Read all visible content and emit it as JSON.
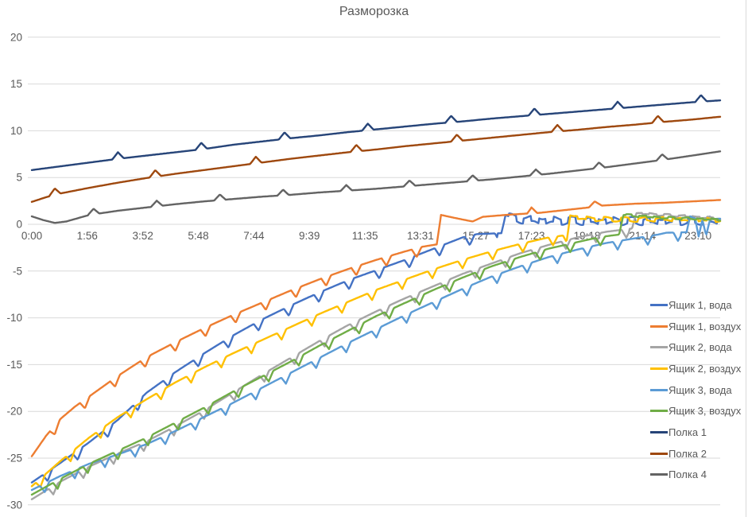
{
  "title": "Разморозка",
  "chart_data": {
    "type": "line",
    "title": "Разморозка",
    "x_axis": {
      "tick_labels": [
        "0:00",
        "1:56",
        "3:52",
        "5:48",
        "7:44",
        "9:39",
        "11:35",
        "13:31",
        "15:27",
        "17:23",
        "19:18",
        "21:14",
        "23:10"
      ],
      "tick_interval_minutes": 116,
      "range_hours": [
        0,
        24.1
      ]
    },
    "y_axis": {
      "ticks": [
        20,
        15,
        10,
        5,
        0,
        -5,
        -10,
        -15,
        -20,
        -25,
        -30
      ],
      "min": -30,
      "max": 20,
      "gridlines": true
    },
    "legend_position": "right",
    "style": {
      "background": "#FFFFFF",
      "gridline_color": "#D9D9D9",
      "border_color": "#D9D9D9",
      "axis_text_color": "#595959",
      "title_color": "#595959"
    },
    "series": [
      {
        "name": "Ящик 1, вода",
        "color": "#4472C4",
        "anchors": [
          [
            0,
            -27.6
          ],
          [
            1,
            -25.5
          ],
          [
            2,
            -23.3
          ],
          [
            3,
            -20.9
          ],
          [
            4,
            -18.0
          ],
          [
            5,
            -15.8
          ],
          [
            6,
            -13.8
          ],
          [
            7,
            -11.9
          ],
          [
            8,
            -10.2
          ],
          [
            9,
            -8.7
          ],
          [
            10,
            -7.3
          ],
          [
            11,
            -6.0
          ],
          [
            12,
            -4.9
          ],
          [
            13,
            -3.8
          ],
          [
            14,
            -2.6
          ],
          [
            15,
            -1.4
          ],
          [
            15.5,
            -1.05
          ],
          [
            16.35,
            -0.95
          ],
          [
            16.5,
            1.0
          ],
          [
            16.8,
            0.55
          ],
          [
            18,
            0.4
          ],
          [
            20,
            0.35
          ],
          [
            22,
            0.35
          ],
          [
            23.97,
            0.4
          ]
        ],
        "spikes": {
          "dir": -1,
          "period": 1.05,
          "start": 0.55,
          "amp": 1.0,
          "width": 0.17,
          "until": 16.2
        },
        "noise": {
          "from": 16.6,
          "amp": 0.55,
          "period": 0.52,
          "phase": 0
        }
      },
      {
        "name": "Ящик 1, воздух",
        "color": "#ED7D31",
        "anchors": [
          [
            0,
            -24.8
          ],
          [
            0.5,
            -22.6
          ],
          [
            1,
            -20.8
          ],
          [
            1.5,
            -19.5
          ],
          [
            2,
            -18.4
          ],
          [
            3,
            -16.2
          ],
          [
            4,
            -14.2
          ],
          [
            5,
            -12.6
          ],
          [
            6,
            -11.1
          ],
          [
            7,
            -9.7
          ],
          [
            8,
            -8.4
          ],
          [
            9,
            -7.1
          ],
          [
            10,
            -5.9
          ],
          [
            11,
            -4.8
          ],
          [
            12,
            -3.8
          ],
          [
            13,
            -2.9
          ],
          [
            13.6,
            -2.4
          ],
          [
            14.1,
            -2.15
          ],
          [
            14.25,
            1.0
          ],
          [
            14.7,
            0.7
          ],
          [
            15.1,
            0.45
          ],
          [
            15.35,
            0.3
          ],
          [
            15.7,
            0.8
          ],
          [
            16.5,
            1.0
          ],
          [
            17.25,
            1.15
          ],
          [
            17.4,
            1.8
          ],
          [
            17.6,
            1.2
          ],
          [
            18.5,
            1.5
          ],
          [
            19.4,
            1.8
          ],
          [
            19.6,
            2.45
          ],
          [
            19.85,
            2.0
          ],
          [
            21,
            2.2
          ],
          [
            22,
            2.3
          ],
          [
            23,
            2.45
          ],
          [
            23.97,
            2.6
          ]
        ],
        "spikes": {
          "dir": -1,
          "period": 1.05,
          "start": 0.8,
          "amp": 0.95,
          "width": 0.17,
          "until": 13.9
        }
      },
      {
        "name": "Ящик 2, вода",
        "color": "#A5A5A5",
        "anchors": [
          [
            0,
            -29.4
          ],
          [
            1,
            -27.5
          ],
          [
            2,
            -25.9
          ],
          [
            3,
            -24.5
          ],
          [
            4,
            -23.2
          ],
          [
            5,
            -21.6
          ],
          [
            6,
            -19.9
          ],
          [
            7,
            -18.0
          ],
          [
            8,
            -16.1
          ],
          [
            9,
            -14.3
          ],
          [
            10,
            -12.5
          ],
          [
            11,
            -10.8
          ],
          [
            12,
            -9.3
          ],
          [
            13,
            -7.9
          ],
          [
            14,
            -6.6
          ],
          [
            15,
            -5.3
          ],
          [
            16,
            -4.2
          ],
          [
            17,
            -3.1
          ],
          [
            18,
            -2.2
          ],
          [
            19,
            -1.4
          ],
          [
            20,
            -0.8
          ],
          [
            20.9,
            -0.45
          ],
          [
            21.05,
            1.2
          ],
          [
            21.7,
            1.05
          ],
          [
            22.6,
            0.9
          ],
          [
            23.97,
            0.6
          ]
        ],
        "spikes": {
          "dir": -1,
          "period": 1.05,
          "start": 0.75,
          "amp": 0.9,
          "width": 0.16,
          "until": 20.8
        },
        "noise": {
          "from": 21.1,
          "amp": 0.15,
          "period": 0.5,
          "phase": 1.2
        }
      },
      {
        "name": "Ящик 2, воздух",
        "color": "#FFC000",
        "anchors": [
          [
            0,
            -28.0
          ],
          [
            1,
            -25.3
          ],
          [
            2,
            -22.8
          ],
          [
            3,
            -20.6
          ],
          [
            4,
            -18.7
          ],
          [
            5,
            -16.9
          ],
          [
            6,
            -15.3
          ],
          [
            7,
            -13.8
          ],
          [
            8,
            -12.4
          ],
          [
            9,
            -11.0
          ],
          [
            10,
            -9.6
          ],
          [
            11,
            -8.3
          ],
          [
            12,
            -7.0
          ],
          [
            13,
            -5.9
          ],
          [
            14,
            -4.8
          ],
          [
            15,
            -3.8
          ],
          [
            16,
            -2.9
          ],
          [
            17,
            -2.1
          ],
          [
            18,
            -1.4
          ],
          [
            18.5,
            -1.2
          ],
          [
            18.62,
            -1.9
          ],
          [
            18.75,
            0.95
          ],
          [
            19.3,
            0.6
          ],
          [
            20,
            0.55
          ],
          [
            21,
            0.5
          ],
          [
            22,
            0.55
          ],
          [
            23,
            0.5
          ],
          [
            23.97,
            0.45
          ]
        ],
        "spikes": {
          "dir": -1,
          "period": 1.05,
          "start": 0.3,
          "amp": 0.9,
          "width": 0.16,
          "until": 18.4
        },
        "noise": {
          "from": 18.9,
          "amp": 0.3,
          "period": 0.6,
          "phase": 2.1
        }
      },
      {
        "name": "Ящик 3, вода",
        "color": "#5B9BD5",
        "anchors": [
          [
            0,
            -28.4
          ],
          [
            1,
            -26.9
          ],
          [
            2,
            -25.6
          ],
          [
            3,
            -24.6
          ],
          [
            4,
            -23.5
          ],
          [
            5,
            -22.1
          ],
          [
            6,
            -20.6
          ],
          [
            7,
            -19.1
          ],
          [
            8,
            -17.5
          ],
          [
            9,
            -15.9
          ],
          [
            10,
            -14.3
          ],
          [
            11,
            -12.7
          ],
          [
            12,
            -11.2
          ],
          [
            13,
            -9.7
          ],
          [
            14,
            -8.3
          ],
          [
            15,
            -6.9
          ],
          [
            16,
            -5.6
          ],
          [
            17,
            -4.5
          ],
          [
            18,
            -3.5
          ],
          [
            19,
            -2.7
          ],
          [
            20,
            -2.0
          ],
          [
            21,
            -1.5
          ],
          [
            21.8,
            -1.1
          ],
          [
            22.1,
            -0.9
          ],
          [
            22.8,
            -0.85
          ],
          [
            22.92,
            0.85
          ],
          [
            23.1,
            0.6
          ],
          [
            23.22,
            -1.3
          ],
          [
            23.35,
            0.5
          ],
          [
            23.48,
            -1.2
          ],
          [
            23.62,
            0.55
          ],
          [
            23.97,
            0.6
          ]
        ],
        "spikes": {
          "dir": -1,
          "period": 1.05,
          "start": 0.45,
          "amp": 0.9,
          "width": 0.16,
          "until": 22.6
        }
      },
      {
        "name": "Ящик 3, воздух",
        "color": "#70AD47",
        "anchors": [
          [
            0,
            -28.9
          ],
          [
            1,
            -27.2
          ],
          [
            2,
            -25.6
          ],
          [
            3,
            -24.2
          ],
          [
            4,
            -22.8
          ],
          [
            5,
            -21.2
          ],
          [
            6,
            -19.6
          ],
          [
            7,
            -17.9
          ],
          [
            8,
            -16.3
          ],
          [
            9,
            -14.7
          ],
          [
            10,
            -13.0
          ],
          [
            11,
            -11.4
          ],
          [
            12,
            -9.8
          ],
          [
            13,
            -8.4
          ],
          [
            14,
            -7.0
          ],
          [
            15,
            -5.7
          ],
          [
            16,
            -4.5
          ],
          [
            17,
            -3.5
          ],
          [
            18,
            -2.6
          ],
          [
            19,
            -1.9
          ],
          [
            19.8,
            -1.35
          ],
          [
            20.45,
            -1.1
          ],
          [
            20.6,
            1.0
          ],
          [
            21.3,
            0.85
          ],
          [
            22,
            0.7
          ],
          [
            23,
            0.6
          ],
          [
            23.97,
            0.5
          ]
        ],
        "spikes": {
          "dir": -1,
          "period": 1.05,
          "start": 0.9,
          "amp": 0.9,
          "width": 0.16,
          "until": 20.3
        },
        "noise": {
          "from": 20.7,
          "amp": 0.15,
          "period": 0.5,
          "phase": 0.7
        }
      },
      {
        "name": "Полка 1",
        "color": "#264478",
        "anchors": [
          [
            0,
            5.8
          ],
          [
            1,
            6.2
          ],
          [
            2,
            6.6
          ],
          [
            3,
            7.0
          ],
          [
            4,
            7.35
          ],
          [
            5,
            7.7
          ],
          [
            6,
            8.05
          ],
          [
            7,
            8.5
          ],
          [
            8,
            8.85
          ],
          [
            9,
            9.2
          ],
          [
            10,
            9.5
          ],
          [
            11,
            9.85
          ],
          [
            12,
            10.15
          ],
          [
            13,
            10.45
          ],
          [
            14,
            10.75
          ],
          [
            15,
            11.0
          ],
          [
            16,
            11.3
          ],
          [
            17,
            11.55
          ],
          [
            18,
            11.8
          ],
          [
            19,
            12.05
          ],
          [
            20,
            12.3
          ],
          [
            21,
            12.55
          ],
          [
            22,
            12.8
          ],
          [
            23,
            13.05
          ],
          [
            23.97,
            13.25
          ]
        ],
        "spikes": {
          "dir": 1,
          "period": 2.9,
          "start": 3.0,
          "amp": 0.7,
          "width": 0.2,
          "until": 23.9
        }
      },
      {
        "name": "Полка 2",
        "color": "#9E480E",
        "anchors": [
          [
            0,
            2.4
          ],
          [
            0.5,
            2.9
          ],
          [
            1,
            3.3
          ],
          [
            1.5,
            3.6
          ],
          [
            2,
            3.9
          ],
          [
            3,
            4.45
          ],
          [
            4,
            4.95
          ],
          [
            5,
            5.4
          ],
          [
            6,
            5.8
          ],
          [
            7,
            6.2
          ],
          [
            8,
            6.6
          ],
          [
            9,
            7.0
          ],
          [
            10,
            7.35
          ],
          [
            11,
            7.7
          ],
          [
            12,
            8.0
          ],
          [
            13,
            8.35
          ],
          [
            14,
            8.65
          ],
          [
            15,
            8.95
          ],
          [
            16,
            9.25
          ],
          [
            17,
            9.55
          ],
          [
            18,
            9.85
          ],
          [
            19,
            10.1
          ],
          [
            20,
            10.4
          ],
          [
            21,
            10.65
          ],
          [
            22,
            10.95
          ],
          [
            23,
            11.2
          ],
          [
            23.97,
            11.5
          ]
        ],
        "spikes": {
          "dir": 1,
          "period": 3.5,
          "start": 0.8,
          "amp": 0.7,
          "width": 0.2,
          "until": 23.9
        }
      },
      {
        "name": "Полка 4",
        "color": "#636363",
        "anchors": [
          [
            0,
            0.85
          ],
          [
            0.4,
            0.45
          ],
          [
            0.8,
            0.15
          ],
          [
            1.2,
            0.3
          ],
          [
            2,
            1.0
          ],
          [
            3,
            1.45
          ],
          [
            4,
            1.8
          ],
          [
            5,
            2.15
          ],
          [
            6,
            2.45
          ],
          [
            7,
            2.7
          ],
          [
            8,
            2.95
          ],
          [
            9,
            3.15
          ],
          [
            10,
            3.4
          ],
          [
            11,
            3.6
          ],
          [
            12,
            3.8
          ],
          [
            13,
            4.05
          ],
          [
            14,
            4.3
          ],
          [
            15,
            4.55
          ],
          [
            16,
            4.8
          ],
          [
            17,
            5.1
          ],
          [
            18,
            5.4
          ],
          [
            19,
            5.75
          ],
          [
            20,
            6.1
          ],
          [
            21,
            6.5
          ],
          [
            22,
            6.9
          ],
          [
            23,
            7.35
          ],
          [
            23.97,
            7.8
          ]
        ],
        "spikes": {
          "dir": 1,
          "period": 2.2,
          "start": 2.15,
          "amp": 0.6,
          "width": 0.2,
          "until": 23.9
        }
      }
    ]
  }
}
